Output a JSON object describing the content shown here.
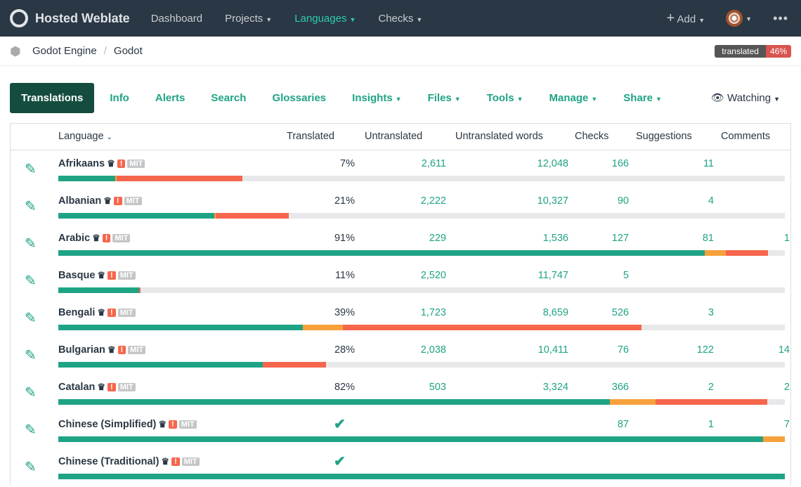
{
  "nav": {
    "brand": "Hosted Weblate",
    "items": [
      {
        "label": "Dashboard",
        "caret": false
      },
      {
        "label": "Projects",
        "caret": true
      },
      {
        "label": "Languages",
        "caret": true,
        "active": true
      },
      {
        "label": "Checks",
        "caret": true
      }
    ],
    "add": "Add"
  },
  "breadcrumb": {
    "project": "Godot Engine",
    "component": "Godot"
  },
  "badge": {
    "label": "translated",
    "value": "46%"
  },
  "tabs": [
    "Translations",
    "Info",
    "Alerts",
    "Search",
    "Glossaries",
    "Insights",
    "Files",
    "Tools",
    "Manage",
    "Share"
  ],
  "watching": "Watching",
  "columns": [
    "Language",
    "Translated",
    "Untranslated",
    "Untranslated words",
    "Checks",
    "Suggestions",
    "Comments"
  ],
  "license": "MIT",
  "colors": {
    "approved": "#1fa385",
    "needs_edit": "#f6a13b",
    "failing": "#f6664c",
    "empty": "#e8e8ea"
  },
  "rows": [
    {
      "language": "Afrikaans",
      "translated": "7%",
      "untranslated": "2,611",
      "words": "12,048",
      "checks": "166",
      "suggestions": "11",
      "comments": "",
      "bar": [
        7.8,
        0.2,
        17.3
      ]
    },
    {
      "language": "Albanian",
      "translated": "21%",
      "untranslated": "2,222",
      "words": "10,327",
      "checks": "90",
      "suggestions": "4",
      "comments": "",
      "bar": [
        21.5,
        0.2,
        10.0
      ]
    },
    {
      "language": "Arabic",
      "translated": "91%",
      "untranslated": "229",
      "words": "1,536",
      "checks": "127",
      "suggestions": "81",
      "comments": "1",
      "bar": [
        89,
        2.9,
        5.8
      ]
    },
    {
      "language": "Basque",
      "translated": "11%",
      "untranslated": "2,520",
      "words": "11,747",
      "checks": "5",
      "suggestions": "",
      "comments": "",
      "bar": [
        11.1,
        0,
        0.2
      ]
    },
    {
      "language": "Bengali",
      "translated": "39%",
      "untranslated": "1,723",
      "words": "8,659",
      "checks": "526",
      "suggestions": "3",
      "comments": "",
      "bar": [
        33.7,
        5.5,
        41.1
      ]
    },
    {
      "language": "Bulgarian",
      "translated": "28%",
      "untranslated": "2,038",
      "words": "10,411",
      "checks": "76",
      "suggestions": "122",
      "comments": "14",
      "bar": [
        28.1,
        0,
        8.7
      ]
    },
    {
      "language": "Catalan",
      "translated": "82%",
      "untranslated": "503",
      "words": "3,324",
      "checks": "366",
      "suggestions": "2",
      "comments": "2",
      "bar": [
        75.9,
        6.3,
        15.4
      ]
    },
    {
      "language": "Chinese (Simplified)",
      "translated": "complete",
      "untranslated": "",
      "words": "",
      "checks": "87",
      "suggestions": "1",
      "comments": "7",
      "bar": [
        97,
        3,
        0
      ]
    },
    {
      "language": "Chinese (Traditional)",
      "translated": "complete",
      "untranslated": "",
      "words": "",
      "checks": "",
      "suggestions": "",
      "comments": "",
      "bar": [
        100,
        0,
        0
      ]
    }
  ]
}
